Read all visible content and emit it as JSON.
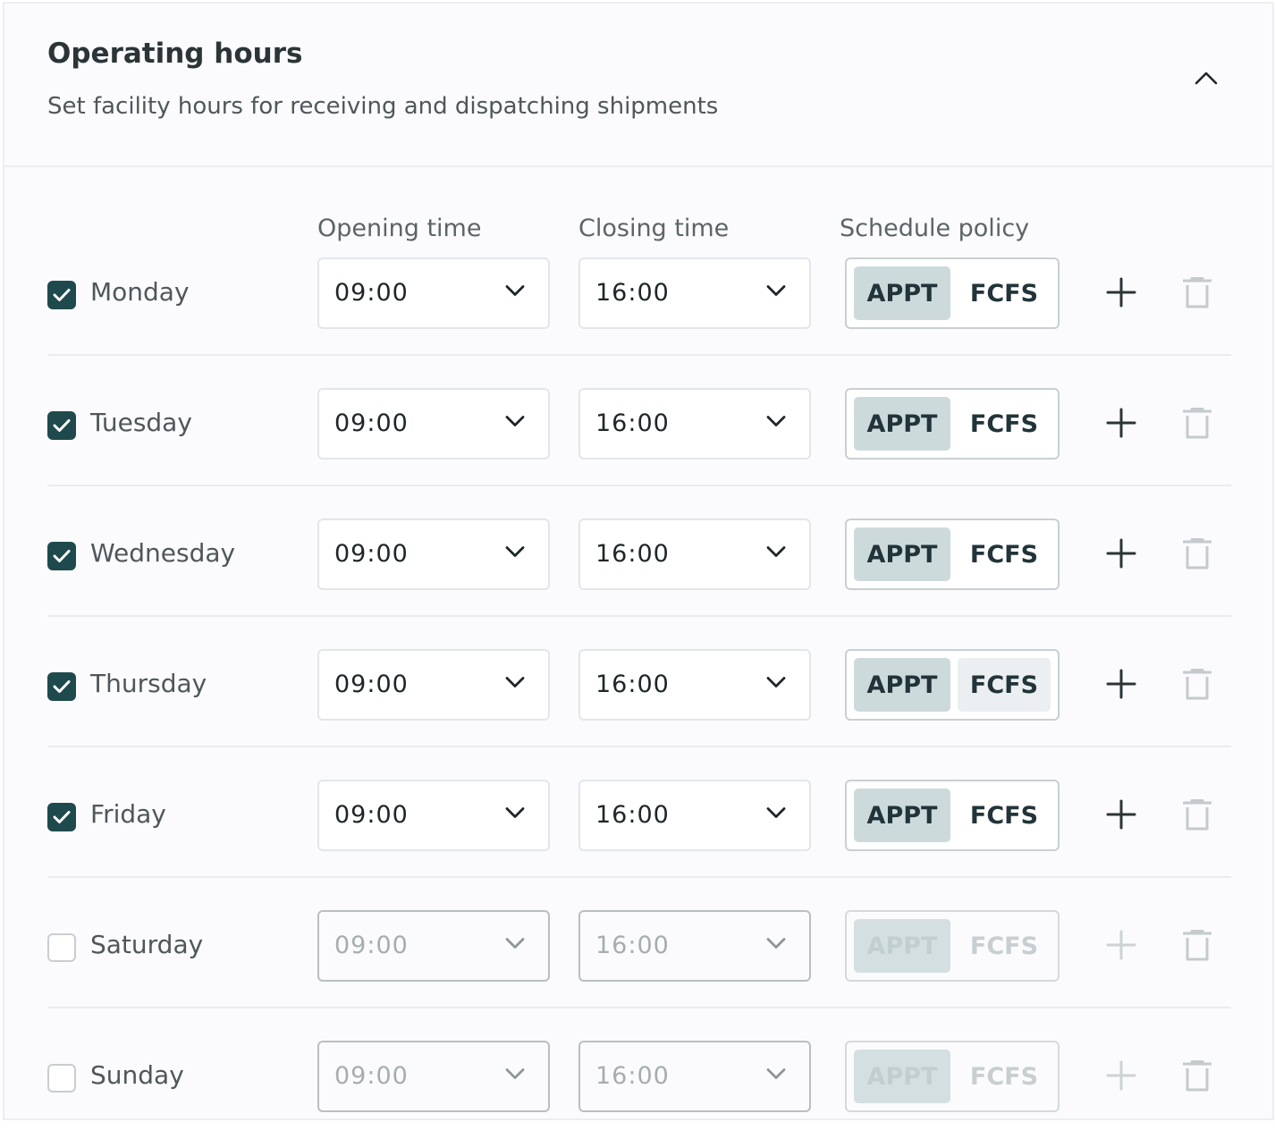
{
  "header": {
    "title": "Operating hours",
    "subtitle": "Set facility hours for receiving and dispatching shipments"
  },
  "columns": {
    "opening": "Opening time",
    "closing": "Closing time",
    "policy": "Schedule policy"
  },
  "policy_options": {
    "appt": "APPT",
    "fcfs": "FCFS"
  },
  "days": [
    {
      "day": "Monday",
      "enabled": true,
      "open": "09:00",
      "close": "16:00",
      "policy": "APPT"
    },
    {
      "day": "Tuesday",
      "enabled": true,
      "open": "09:00",
      "close": "16:00",
      "policy": "APPT"
    },
    {
      "day": "Wednesday",
      "enabled": true,
      "open": "09:00",
      "close": "16:00",
      "policy": "APPT"
    },
    {
      "day": "Thursday",
      "enabled": true,
      "open": "09:00",
      "close": "16:00",
      "policy": "APPT"
    },
    {
      "day": "Friday",
      "enabled": true,
      "open": "09:00",
      "close": "16:00",
      "policy": "APPT"
    },
    {
      "day": "Saturday",
      "enabled": false,
      "open": "09:00",
      "close": "16:00",
      "policy": "APPT"
    },
    {
      "day": "Sunday",
      "enabled": false,
      "open": "09:00",
      "close": "16:00",
      "policy": "APPT"
    }
  ],
  "icons": {
    "collapse": "chevron-up-icon",
    "check": "checkmark-icon",
    "dropdown": "chevron-down-icon",
    "add": "plus-icon",
    "delete": "trash-icon"
  },
  "colors": {
    "checkbox_checked": "#1f4a4d",
    "policy_selected": "#ccdadc",
    "text_primary": "#2b3437"
  }
}
